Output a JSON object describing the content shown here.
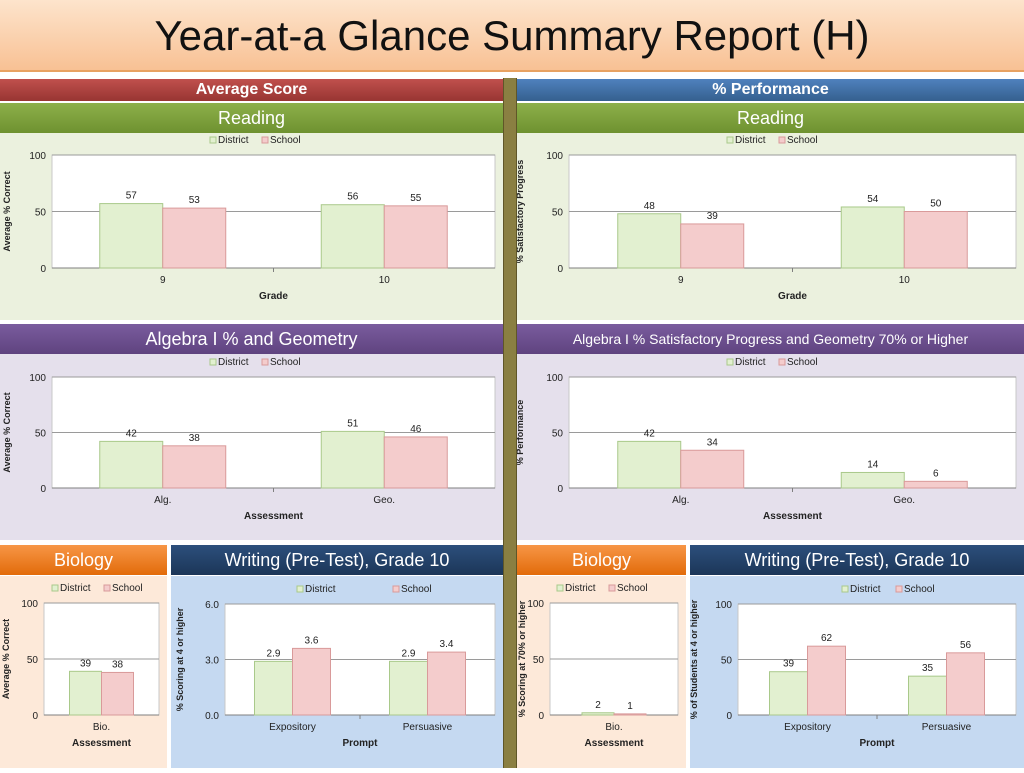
{
  "title": "Year-at-a Glance Summary Report (H)",
  "sections": {
    "left": "Average Score",
    "right": "% Performance"
  },
  "colors": {
    "district": "#e2f0d0",
    "district_stroke": "#a9c98a",
    "school": "#f4cccc",
    "school_stroke": "#d99a9a"
  },
  "legend": {
    "district": "District",
    "school": "School"
  },
  "panels": {
    "reading_avg": {
      "heading": "Reading"
    },
    "reading_perf": {
      "heading": "Reading"
    },
    "algebra_avg": {
      "heading": "Algebra I % and Geometry"
    },
    "algebra_perf": {
      "heading": "Algebra I % Satisfactory Progress and Geometry 70% or Higher"
    },
    "biology_avg": {
      "heading": "Biology"
    },
    "writing_avg": {
      "heading": "Writing (Pre-Test), Grade 10"
    },
    "biology_perf": {
      "heading": "Biology"
    },
    "writing_perf": {
      "heading": "Writing (Pre-Test), Grade 10"
    }
  },
  "chart_data": [
    {
      "id": "reading_avg",
      "type": "bar",
      "categories": [
        "9",
        "10"
      ],
      "series": [
        {
          "name": "District",
          "values": [
            57,
            56
          ]
        },
        {
          "name": "School",
          "values": [
            53,
            55
          ]
        }
      ],
      "xlabel": "Grade",
      "ylabel": "Average % Correct",
      "ylim": [
        0,
        100
      ],
      "yticks": [
        "0",
        "50",
        "100"
      ],
      "labels": [
        [
          "57",
          "56"
        ],
        [
          "53",
          "55"
        ]
      ],
      "legend_position": "top"
    },
    {
      "id": "reading_perf",
      "type": "bar",
      "categories": [
        "9",
        "10"
      ],
      "series": [
        {
          "name": "District",
          "values": [
            48,
            54
          ]
        },
        {
          "name": "School",
          "values": [
            39,
            50
          ]
        }
      ],
      "xlabel": "Grade",
      "ylabel": "% Satisfactory Progress",
      "ylim": [
        0,
        100
      ],
      "yticks": [
        "0",
        "50",
        "100"
      ],
      "labels": [
        [
          "48",
          "54"
        ],
        [
          "39",
          "50"
        ]
      ],
      "legend_position": "top"
    },
    {
      "id": "algebra_avg",
      "type": "bar",
      "categories": [
        "Alg.",
        "Geo."
      ],
      "series": [
        {
          "name": "District",
          "values": [
            42,
            51
          ]
        },
        {
          "name": "School",
          "values": [
            38,
            46
          ]
        }
      ],
      "xlabel": "Assessment",
      "ylabel": "Average % Correct",
      "ylim": [
        0,
        100
      ],
      "yticks": [
        "0",
        "50",
        "100"
      ],
      "labels": [
        [
          "42",
          "51"
        ],
        [
          "38",
          "46"
        ]
      ],
      "legend_position": "top"
    },
    {
      "id": "algebra_perf",
      "type": "bar",
      "categories": [
        "Alg.",
        "Geo."
      ],
      "series": [
        {
          "name": "District",
          "values": [
            42,
            14
          ]
        },
        {
          "name": "School",
          "values": [
            34,
            6
          ]
        }
      ],
      "xlabel": "Assessment",
      "ylabel": "% Performance",
      "ylim": [
        0,
        100
      ],
      "yticks": [
        "0",
        "50",
        "100"
      ],
      "labels": [
        [
          "42",
          "14"
        ],
        [
          "34",
          "6"
        ]
      ],
      "legend_position": "top"
    },
    {
      "id": "biology_avg",
      "type": "bar",
      "categories": [
        "Bio."
      ],
      "series": [
        {
          "name": "District",
          "values": [
            39
          ]
        },
        {
          "name": "School",
          "values": [
            38
          ]
        }
      ],
      "xlabel": "Assessment",
      "ylabel": "Average % Correct",
      "ylim": [
        0,
        100
      ],
      "yticks": [
        "0",
        "50",
        "100"
      ],
      "labels": [
        [
          "39"
        ],
        [
          "38"
        ]
      ],
      "legend_position": "top"
    },
    {
      "id": "writing_avg",
      "type": "bar",
      "categories": [
        "Expository",
        "Persuasive"
      ],
      "series": [
        {
          "name": "District",
          "values": [
            2.9,
            2.9
          ]
        },
        {
          "name": "School",
          "values": [
            3.6,
            3.4
          ]
        }
      ],
      "xlabel": "Prompt",
      "ylabel": "% Scoring at 4 or higher",
      "ylim": [
        0,
        6
      ],
      "yticks": [
        "0.0",
        "3.0",
        "6.0"
      ],
      "labels": [
        [
          "2.9",
          "2.9"
        ],
        [
          "3.6",
          "3.4"
        ]
      ],
      "legend_position": "top"
    },
    {
      "id": "biology_perf",
      "type": "bar",
      "categories": [
        "Bio."
      ],
      "series": [
        {
          "name": "District",
          "values": [
            2
          ]
        },
        {
          "name": "School",
          "values": [
            1
          ]
        }
      ],
      "xlabel": "Assessment",
      "ylabel": "% Scoring at 70% or higher",
      "ylim": [
        0,
        100
      ],
      "yticks": [
        "0",
        "50",
        "100"
      ],
      "labels": [
        [
          "2"
        ],
        [
          "1"
        ]
      ],
      "legend_position": "top"
    },
    {
      "id": "writing_perf",
      "type": "bar",
      "categories": [
        "Expository",
        "Persuasive"
      ],
      "series": [
        {
          "name": "District",
          "values": [
            39,
            35
          ]
        },
        {
          "name": "School",
          "values": [
            62,
            56
          ]
        }
      ],
      "xlabel": "Prompt",
      "ylabel": "% of Students at 4 or higher",
      "ylim": [
        0,
        100
      ],
      "yticks": [
        "0",
        "50",
        "100"
      ],
      "labels": [
        [
          "39",
          "35"
        ],
        [
          "62",
          "56"
        ]
      ],
      "legend_position": "top"
    }
  ]
}
